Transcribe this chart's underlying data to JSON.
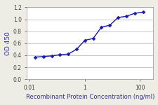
{
  "x_values": [
    0.016,
    0.031,
    0.063,
    0.125,
    0.25,
    0.5,
    1.0,
    2.0,
    4.0,
    8.0,
    16.0,
    32.0,
    64.0,
    128.0
  ],
  "y_values": [
    0.37,
    0.38,
    0.39,
    0.41,
    0.42,
    0.5,
    0.65,
    0.68,
    0.87,
    0.9,
    1.03,
    1.05,
    1.1,
    1.12
  ],
  "line_color": "#1a1aaa",
  "marker_color": "#1a1aaa",
  "marker_style": "D",
  "marker_size": 2.5,
  "line_width": 1.0,
  "xlim": [
    0.008,
    300
  ],
  "ylim": [
    0.0,
    1.2
  ],
  "yticks": [
    0.0,
    0.2,
    0.4,
    0.6,
    0.8,
    1.0,
    1.2
  ],
  "xticks": [
    0.01,
    1,
    100
  ],
  "xticklabels": [
    "0.01",
    "1",
    "100"
  ],
  "ylabel": "OD 450",
  "xlabel": "Recombinant Protein Concentration (ng/ml)",
  "xlabel_fontsize": 6.0,
  "ylabel_fontsize": 6.5,
  "tick_fontsize": 5.5,
  "background_color": "#eeede5",
  "plot_bg_color": "#ffffff",
  "grid_color": "#b0b0b0",
  "grid_linewidth": 0.5
}
